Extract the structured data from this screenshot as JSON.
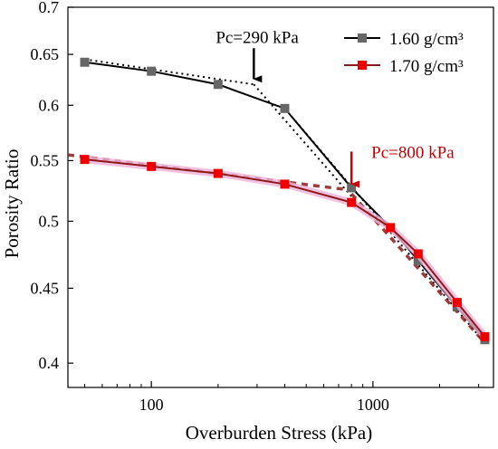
{
  "chart_data": {
    "type": "line",
    "title": "",
    "xlabel": "Overburden Stress (kPa)",
    "ylabel": "Porosity Ratio",
    "xscale": "log",
    "yscale": "log",
    "xlim": [
      42,
      3500
    ],
    "ylim": [
      0.385,
      0.7
    ],
    "x_ticks": [
      {
        "value": 100,
        "label": "100"
      },
      {
        "value": 1000,
        "label": "1000"
      }
    ],
    "y_ticks": [
      {
        "value": 0.4,
        "label": "0.4"
      },
      {
        "value": 0.45,
        "label": "0.45"
      },
      {
        "value": 0.5,
        "label": "0.5"
      },
      {
        "value": 0.55,
        "label": "0.55"
      },
      {
        "value": 0.6,
        "label": "0.6"
      },
      {
        "value": 0.65,
        "label": "0.65"
      },
      {
        "value": 0.7,
        "label": "0.7"
      }
    ],
    "grid": false,
    "legend_position": "top-right",
    "series": [
      {
        "name": "1.60 g/cm³",
        "color": "#000000",
        "marker_color": "#666666",
        "x": [
          50,
          100,
          200,
          400,
          800,
          1200,
          1600,
          2400,
          3200
        ],
        "y": [
          0.642,
          0.633,
          0.62,
          0.597,
          0.527,
          0.495,
          0.47,
          0.437,
          0.415
        ]
      },
      {
        "name": "1.70 g/cm³",
        "color": "#8b1a1a",
        "marker_color": "#ee0000",
        "x": [
          50,
          100,
          200,
          400,
          800,
          1200,
          1600,
          2400,
          3200
        ],
        "y": [
          0.551,
          0.545,
          0.539,
          0.53,
          0.515,
          0.495,
          0.475,
          0.44,
          0.417
        ]
      }
    ],
    "fit_lines": [
      {
        "series": "1.60 g/cm³",
        "style": "dotted",
        "color": "#000000",
        "segments": [
          [
            [
              50,
              0.645
            ],
            [
              290,
              0.62
            ]
          ],
          [
            [
              290,
              0.62
            ],
            [
              800,
              0.52
            ]
          ],
          [
            [
              400,
              0.597
            ],
            [
              3200,
              0.413
            ]
          ]
        ]
      },
      {
        "series": "1.70 g/cm³",
        "style": "dashed",
        "color": "#8b1a1a",
        "segments": [
          [
            [
              42,
              0.555
            ],
            [
              800,
              0.525
            ]
          ],
          [
            [
              800,
              0.522
            ],
            [
              3200,
              0.413
            ]
          ]
        ]
      }
    ],
    "annotations": [
      {
        "text": "Pc=290 kPa",
        "x": 290,
        "y": 0.62,
        "color": "#000000",
        "arrow_color": "#000000"
      },
      {
        "text": "Pc=800 kPa",
        "x": 800,
        "y": 0.527,
        "color": "#c00000",
        "arrow_color": "#cc0000"
      }
    ]
  }
}
